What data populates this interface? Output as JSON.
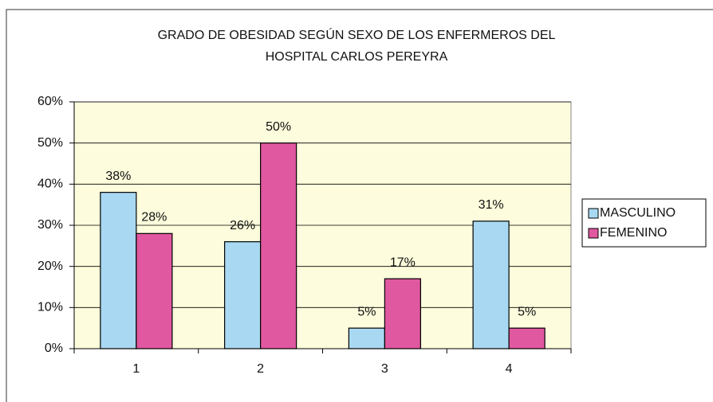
{
  "chart_data": {
    "type": "bar",
    "title": [
      "GRADO DE OBESIDAD SEGÚN SEXO DE LOS ENFERMEROS  DEL",
      "HOSPITAL CARLOS PEREYRA"
    ],
    "categories": [
      "1",
      "2",
      "3",
      "4"
    ],
    "series": [
      {
        "name": "MASCULINO",
        "color": "#a9d9f2",
        "values": [
          38,
          26,
          5,
          31
        ],
        "value_labels": [
          "38%",
          "26%",
          "5%",
          "31%"
        ]
      },
      {
        "name": "FEMENINO",
        "color": "#e0589f",
        "values": [
          28,
          50,
          17,
          5
        ],
        "value_labels": [
          "28%",
          "50%",
          "17%",
          "5%"
        ]
      }
    ],
    "ylim": [
      0,
      60
    ],
    "yticks": [
      {
        "value": 0,
        "label": "0%"
      },
      {
        "value": 10,
        "label": "10%"
      },
      {
        "value": 20,
        "label": "20%"
      },
      {
        "value": 30,
        "label": "30%"
      },
      {
        "value": 40,
        "label": "40%"
      },
      {
        "value": 50,
        "label": "50%"
      },
      {
        "value": 60,
        "label": "60%"
      }
    ],
    "grid": true,
    "legend": "right",
    "plot_background": "#fdfcdc"
  }
}
